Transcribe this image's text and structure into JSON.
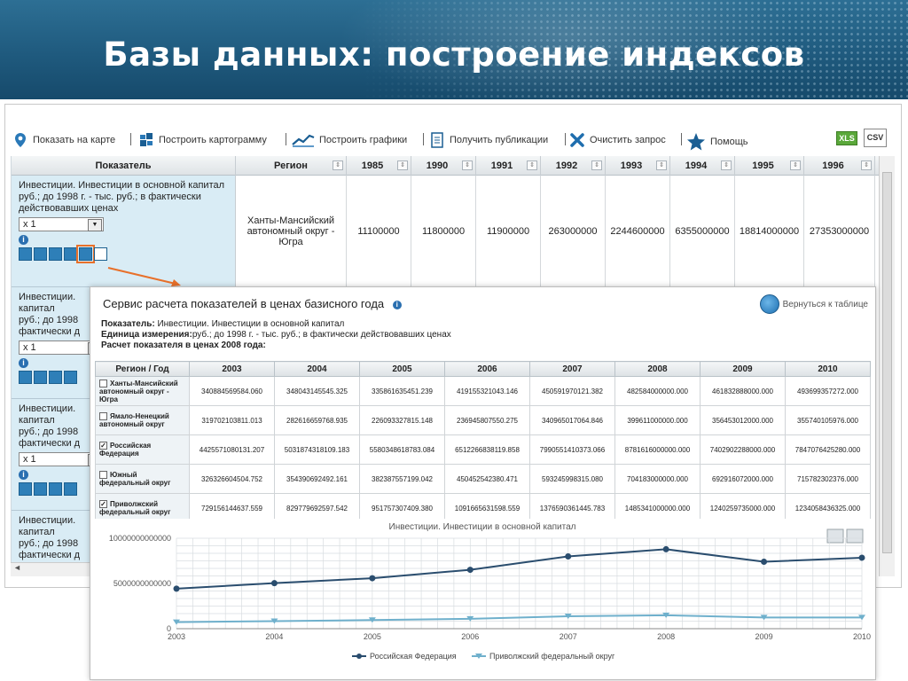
{
  "slide_title": "Базы данных: построение индексов",
  "toolbar": {
    "map": "Показать на карте",
    "cartogram": "Построить картограмму",
    "charts": "Построить графики",
    "publications": "Получить публикации",
    "clear": "Очистить запрос",
    "help": "Помощь",
    "xls": "XLS",
    "csv": "CSV"
  },
  "grid": {
    "headers": {
      "indicator": "Показатель",
      "region": "Регион"
    },
    "years": [
      "1985",
      "1990",
      "1991",
      "1992",
      "1993",
      "1994",
      "1995",
      "1996"
    ],
    "row1": {
      "indicator": "Инвестиции. Инвестиции в основной капитал руб.; до 1998 г. - тыс. руб.; в фактически действовавших ценах",
      "scale": "x 1",
      "region": "Ханты-Мансийский автономный округ - Югра",
      "values": [
        "11100000",
        "11800000",
        "11900000",
        "263000000",
        "2244600000",
        "6355000000",
        "18814000000",
        "27353000000"
      ]
    },
    "collapsed_rows": [
      {
        "line1": "Инвестиции.",
        "line2": "капитал",
        "line3": "руб.; до 1998",
        "line4": "фактически д",
        "scale": "x 1"
      },
      {
        "line1": "Инвестиции.",
        "line2": "капитал",
        "line3": "руб.; до 1998",
        "line4": "фактически д",
        "scale": "x 1"
      },
      {
        "line1": "Инвестиции.",
        "line2": "капитал",
        "line3": "руб.; до 1998",
        "line4": "фактически д"
      }
    ]
  },
  "popup": {
    "title": "Сервис расчета показателей в ценах базисного года",
    "back": "Вернуться к таблице",
    "meta_indicator_label": "Показатель:",
    "meta_indicator": "Инвестиции. Инвестиции в основной капитал",
    "meta_unit_label": "Единица измерения:",
    "meta_unit": "руб.; до 1998 г. - тыс. руб.; в фактически действовавших ценах",
    "meta_calc": "Расчет показателя в ценах 2008 года:",
    "table_header": "Регион / Год",
    "years": [
      "2003",
      "2004",
      "2005",
      "2006",
      "2007",
      "2008",
      "2009",
      "2010"
    ],
    "rows": [
      {
        "name": "Ханты-Мансийский автономный округ - Югра",
        "checked": false,
        "values": [
          "340884569584.060",
          "348043145545.325",
          "335861635451.239",
          "419155321043.146",
          "450591970121.382",
          "482584000000.000",
          "461832888000.000",
          "493699357272.000"
        ]
      },
      {
        "name": "Ямало-Ненецкий автономный округ",
        "checked": false,
        "values": [
          "319702103811.013",
          "282616659768.935",
          "226093327815.148",
          "236945807550.275",
          "340965017064.846",
          "399611000000.000",
          "356453012000.000",
          "355740105976.000"
        ]
      },
      {
        "name": "Российская Федерация",
        "checked": true,
        "values": [
          "4425571080131.207",
          "5031874318109.183",
          "5580348618783.084",
          "6512266838119.858",
          "7990551410373.066",
          "8781616000000.000",
          "7402902288000.000",
          "7847076425280.000"
        ]
      },
      {
        "name": "Южный федеральный округ",
        "checked": false,
        "values": [
          "326326604504.752",
          "354390692492.161",
          "382387557199.042",
          "450452542380.471",
          "593245998315.080",
          "704183000000.000",
          "692916072000.000",
          "715782302376.000"
        ]
      },
      {
        "name": "Приволжский федеральный округ",
        "checked": true,
        "values": [
          "729156144637.559",
          "829779692597.542",
          "951757307409.380",
          "1091665631598.559",
          "1376590361445.783",
          "1485341000000.000",
          "1240259735000.000",
          "1234058436325.000"
        ]
      }
    ]
  },
  "chart_data": {
    "type": "line",
    "title": "Инвестиции. Инвестиции в основной капитал",
    "x": [
      2003,
      2004,
      2005,
      2006,
      2007,
      2008,
      2009,
      2010
    ],
    "xlabel": "",
    "ylabel": "",
    "ylim": [
      0,
      10000000000000
    ],
    "yticks": [
      "0",
      "5000000000000",
      "10000000000000"
    ],
    "grid": true,
    "legend": "bottom",
    "series": [
      {
        "name": "Российская Федерация",
        "color": "#2a4d6e",
        "values": [
          4425571080131,
          5031874318109,
          5580348618783,
          6512266838119,
          7990551410373,
          8781616000000,
          7402902288000,
          7847076425280
        ]
      },
      {
        "name": "Приволжский федеральный округ",
        "color": "#6fb0cc",
        "values": [
          729156144637,
          829779692597,
          951757307409,
          1091665631598,
          1376590361445,
          1485341000000,
          1240259735000,
          1234058436325
        ]
      }
    ]
  }
}
